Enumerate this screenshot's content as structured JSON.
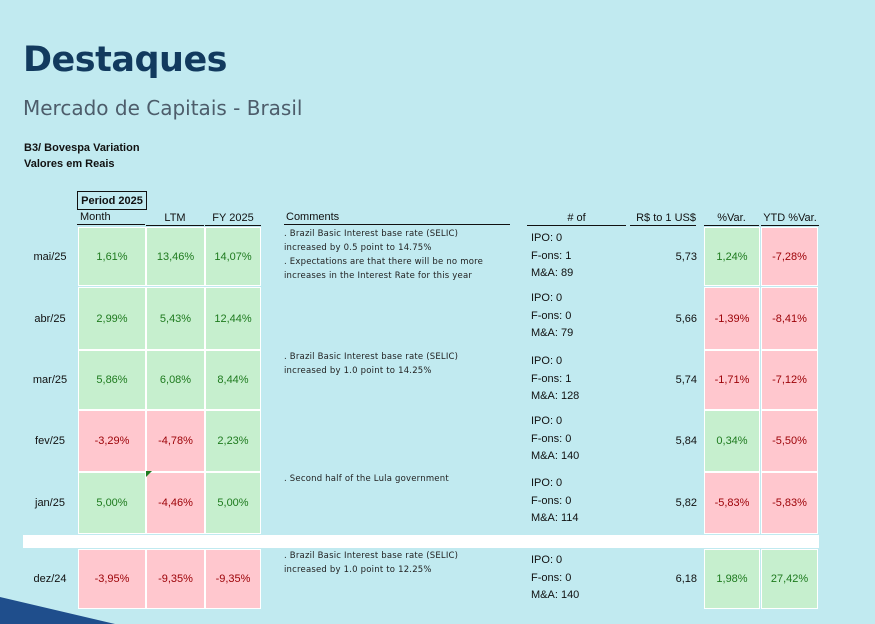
{
  "page": {
    "title": "Destaques",
    "subtitle": "Mercado de Capitais - Brasil",
    "caption_line1": "B3/ Bovespa Variation",
    "caption_line2": "Valores em Reais"
  },
  "table": {
    "period_label": "Period 2025",
    "headers": {
      "month": "Month",
      "ltm": "LTM",
      "fy": "FY 2025",
      "comments": "Comments",
      "deals": "# of",
      "fx": "R$ to 1 US$",
      "var": "%Var.",
      "ytd": "YTD %Var."
    },
    "rows": [
      {
        "month": "mai/25",
        "monthly": "1,61%",
        "ltm": "13,46%",
        "fy": "14,07%",
        "comment1": ". Brazil Basic Interest base rate (SELIC)",
        "comment2": "increased by 0.5 point to 14.75%",
        "comment3": ". Expectations are that there will be no more",
        "comment4": "increases in the Interest Rate for this year",
        "ipo": "IPO: 0",
        "fons": "F-ons: 1",
        "ma": "M&A: 89",
        "fx": "5,73",
        "var": "1,24%",
        "ytd": "-7,28%"
      },
      {
        "month": "abr/25",
        "monthly": "2,99%",
        "ltm": "5,43%",
        "fy": "12,44%",
        "ipo": "IPO: 0",
        "fons": "F-ons: 0",
        "ma": "M&A: 79",
        "fx": "5,66",
        "var": "-1,39%",
        "ytd": "-8,41%"
      },
      {
        "month": "mar/25",
        "monthly": "5,86%",
        "ltm": "6,08%",
        "fy": "8,44%",
        "comment1": ". Brazil Basic Interest base rate (SELIC)",
        "comment2": "increased by 1.0 point to 14.25%",
        "ipo": "IPO: 0",
        "fons": "F-ons: 1",
        "ma": "M&A: 128",
        "fx": "5,74",
        "var": "-1,71%",
        "ytd": "-7,12%"
      },
      {
        "month": "fev/25",
        "monthly": "-3,29%",
        "ltm": "-4,78%",
        "fy": "2,23%",
        "ipo": "IPO: 0",
        "fons": "F-ons: 0",
        "ma": "M&A: 140",
        "fx": "5,84",
        "var": "0,34%",
        "ytd": "-5,50%"
      },
      {
        "month": "jan/25",
        "monthly": "5,00%",
        "ltm": "-4,46%",
        "fy": "5,00%",
        "comment1": ". Second half of the Lula government",
        "ipo": "IPO: 0",
        "fons": "F-ons: 0",
        "ma": "M&A: 114",
        "fx": "5,82",
        "var": "-5,83%",
        "ytd": "-5,83%"
      },
      {
        "month": "dez/24",
        "monthly": "-3,95%",
        "ltm": "-9,35%",
        "fy": "-9,35%",
        "comment1": ". Brazil Basic Interest base rate (SELIC)",
        "comment2": "increased by 1.0 point to 12.25%",
        "ipo": "IPO: 0",
        "fons": "F-ons: 0",
        "ma": "M&A: 140",
        "fx": "6,18",
        "var": "1,98%",
        "ytd": "27,42%"
      }
    ]
  },
  "colors": {
    "background": "#c1eaf0",
    "title": "#123a5e",
    "positive_fill": "#c6efce",
    "positive_text": "#1e7a1e",
    "negative_fill": "#ffc7ce",
    "negative_text": "#9c0006",
    "corner_accent": "#1f4e8c"
  }
}
